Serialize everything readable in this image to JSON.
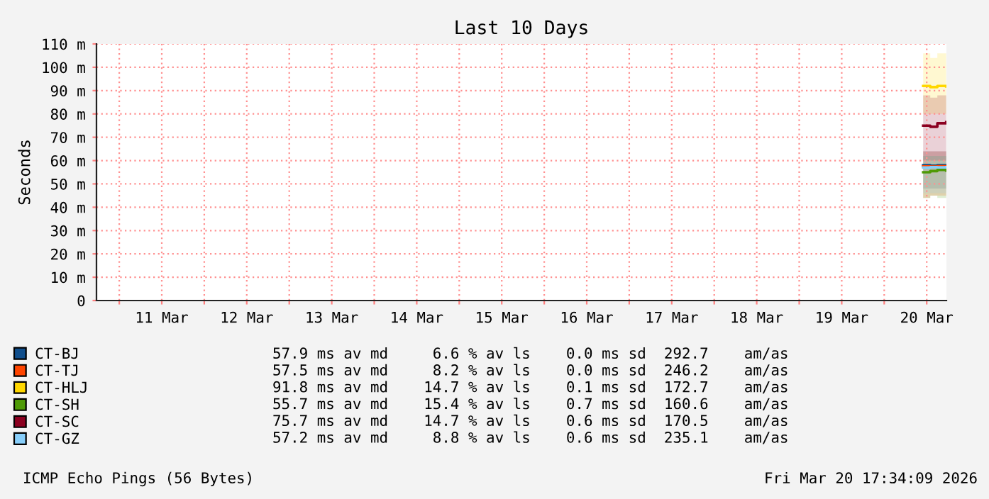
{
  "chart_data": {
    "type": "line",
    "title": "Last 10 Days",
    "ylabel": "Seconds",
    "x": [
      "2026-03-20T11:00",
      "2026-03-20T13:00",
      "2026-03-20T15:00",
      "2026-03-20T17:30"
    ],
    "series": [
      {
        "name": "CT-BJ",
        "color": "#104e8b",
        "values": [
          58,
          57.8,
          58,
          57.9
        ],
        "lower": [
          48,
          48,
          48,
          48
        ],
        "upper": [
          64,
          64,
          64,
          64
        ]
      },
      {
        "name": "CT-TJ",
        "color": "#ff4500",
        "values": [
          57.5,
          57.4,
          57.6,
          57.5
        ],
        "lower": [
          44,
          45,
          45,
          45
        ],
        "upper": [
          64,
          64,
          64,
          64
        ]
      },
      {
        "name": "CT-HLJ",
        "color": "#ffd700",
        "values": [
          92,
          91.5,
          92,
          91.8
        ],
        "lower": [
          80,
          80,
          80,
          80
        ],
        "upper": [
          106,
          104,
          106,
          105
        ]
      },
      {
        "name": "CT-SH",
        "color": "#4e9a06",
        "values": [
          55,
          55.5,
          56,
          55.7
        ],
        "lower": [
          44,
          45,
          44,
          45
        ],
        "upper": [
          62,
          62,
          62,
          62
        ]
      },
      {
        "name": "CT-SC",
        "color": "#8b0020",
        "values": [
          75,
          74.5,
          76,
          76.5
        ],
        "lower": [
          60,
          60,
          60,
          60
        ],
        "upper": [
          88,
          87,
          88,
          88
        ]
      },
      {
        "name": "CT-GZ",
        "color": "#87cefa",
        "values": [
          57,
          57.2,
          57.1,
          57.2
        ],
        "lower": [
          46,
          46,
          46,
          46
        ],
        "upper": [
          62,
          62,
          62,
          62
        ]
      }
    ],
    "xlim": [
      "2026-03-10T17:34",
      "2026-03-20T17:34"
    ],
    "xticks": [
      {
        "value": "2026-03-11T00:00",
        "label": null
      },
      {
        "value": "2026-03-11T12:00",
        "label": "11 Mar"
      },
      {
        "value": "2026-03-12T00:00",
        "label": null
      },
      {
        "value": "2026-03-12T12:00",
        "label": "12 Mar"
      },
      {
        "value": "2026-03-13T00:00",
        "label": null
      },
      {
        "value": "2026-03-13T12:00",
        "label": "13 Mar"
      },
      {
        "value": "2026-03-14T00:00",
        "label": null
      },
      {
        "value": "2026-03-14T12:00",
        "label": "14 Mar"
      },
      {
        "value": "2026-03-15T00:00",
        "label": null
      },
      {
        "value": "2026-03-15T12:00",
        "label": "15 Mar"
      },
      {
        "value": "2026-03-16T00:00",
        "label": null
      },
      {
        "value": "2026-03-16T12:00",
        "label": "16 Mar"
      },
      {
        "value": "2026-03-17T00:00",
        "label": null
      },
      {
        "value": "2026-03-17T12:00",
        "label": "17 Mar"
      },
      {
        "value": "2026-03-18T00:00",
        "label": null
      },
      {
        "value": "2026-03-18T12:00",
        "label": "18 Mar"
      },
      {
        "value": "2026-03-19T00:00",
        "label": null
      },
      {
        "value": "2026-03-19T12:00",
        "label": "19 Mar"
      },
      {
        "value": "2026-03-20T00:00",
        "label": null
      },
      {
        "value": "2026-03-20T12:00",
        "label": "20 Mar"
      }
    ],
    "ylim": [
      0,
      110
    ],
    "yticks": [
      0,
      {
        "value": 10,
        "label": "10 m"
      },
      {
        "value": 20,
        "label": "20 m"
      },
      {
        "value": 30,
        "label": "30 m"
      },
      {
        "value": 40,
        "label": "40 m"
      },
      {
        "value": 50,
        "label": "50 m"
      },
      {
        "value": 60,
        "label": "60 m"
      },
      {
        "value": 70,
        "label": "70 m"
      },
      {
        "value": 80,
        "label": "80 m"
      },
      {
        "value": 90,
        "label": "90 m"
      },
      {
        "value": 100,
        "label": "100 m"
      },
      {
        "value": 110,
        "label": "110 m"
      }
    ],
    "grid": true,
    "legend": "bottom",
    "marker": "none",
    "line_style": "solid",
    "annotations": [
      "57.9 ms av md     6.6 % av ls    0.0 ms sd  292.7    am/as",
      "57.5 ms av md     8.2 % av ls    0.0 ms sd  246.2    am/as",
      "91.8 ms av md    14.7 % av ls    0.1 ms sd  172.7    am/as",
      "55.7 ms av md    15.4 % av ls    0.7 ms sd  160.6    am/as",
      "75.7 ms av md    14.7 % av ls    0.6 ms sd  170.5    am/as",
      "57.2 ms av md     8.8 % av ls    0.6 ms sd  235.1    am/as",
      "ICMP Echo Pings (56 Bytes)",
      "Fri Mar 20 17:34:09 2026"
    ]
  }
}
